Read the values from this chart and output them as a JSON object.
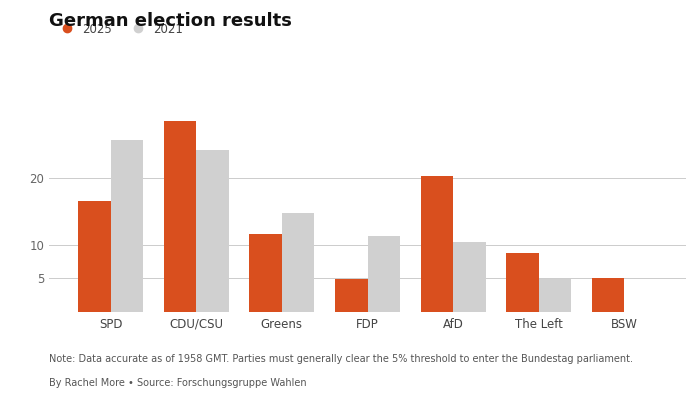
{
  "title": "German election results",
  "categories": [
    "SPD",
    "CDU/CSU",
    "Greens",
    "FDP",
    "AfD",
    "The Left",
    "BSW"
  ],
  "values_2025": [
    16.5,
    28.5,
    11.6,
    4.9,
    20.3,
    8.8,
    5.1
  ],
  "values_2021": [
    25.7,
    24.1,
    14.7,
    11.4,
    10.4,
    4.9,
    0
  ],
  "color_2025": "#d94f1e",
  "color_2021": "#d0d0d0",
  "yticks": [
    5,
    10,
    20
  ],
  "ylim": [
    0,
    31
  ],
  "note": "Note: Data accurate as of 1958 GMT. Parties must generally clear the 5% threshold to enter the Bundestag parliament.",
  "byline": "By Rachel More • Source: Forschungsgruppe Wahlen",
  "legend_2025": "2025",
  "legend_2021": "2021",
  "bar_width": 0.38,
  "background_color": "#ffffff"
}
